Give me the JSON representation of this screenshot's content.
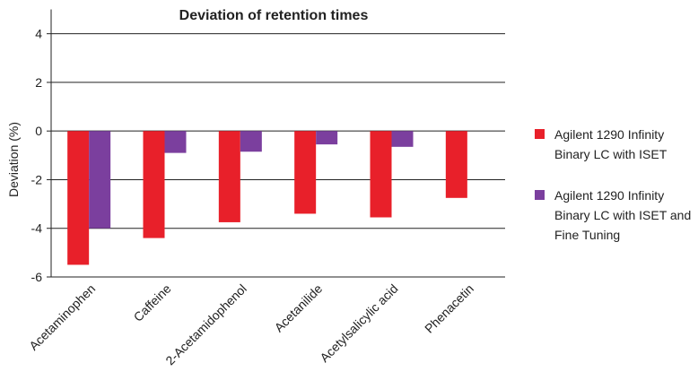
{
  "chart_data": {
    "type": "bar",
    "title": "Deviation of retention times",
    "y_label": "Deviation (%)",
    "categories": [
      "Acetaminophen",
      "Caffeine",
      "2-Acetamidophenol",
      "Acetanilide",
      "Acetylsalicylic acid",
      "Phenacetin"
    ],
    "series": [
      {
        "name": "Agilent 1290 Infinity Binary LC with ISET",
        "color": "#e8202a",
        "values": [
          -5.5,
          -4.4,
          -3.75,
          -3.4,
          -3.55,
          -2.75
        ]
      },
      {
        "name": "Agilent 1290 Infinity Binary LC with ISET and Fine Tuning",
        "color": "#7b3f9e",
        "values": [
          -4.0,
          -0.9,
          -0.85,
          -0.55,
          -0.65,
          null
        ]
      }
    ],
    "ylim": [
      -6,
      5
    ],
    "yticks": [
      -6,
      -4,
      -2,
      0,
      2,
      4
    ],
    "grid": true,
    "legend": "right"
  }
}
